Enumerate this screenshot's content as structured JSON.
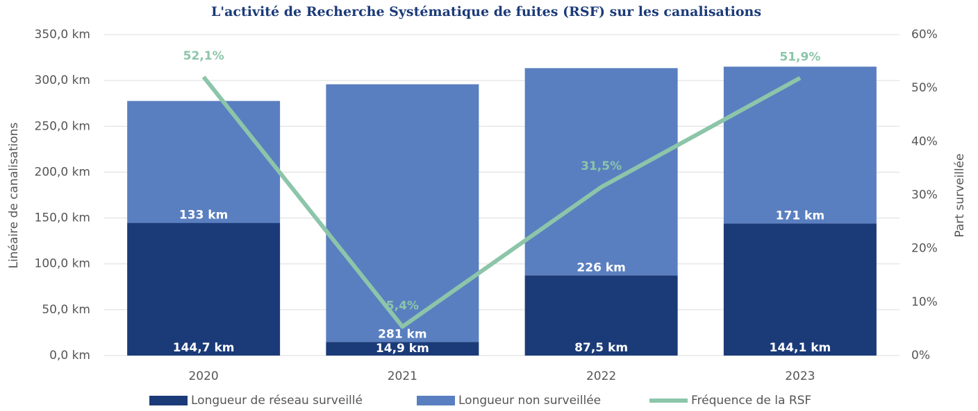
{
  "chart_data": {
    "type": "bar",
    "title": "L'activité de Recherche Systématique de fuites (RSF) sur les canalisations",
    "categories": [
      "2020",
      "2021",
      "2022",
      "2023"
    ],
    "stacked": true,
    "series": [
      {
        "name": "Longueur de réseau surveillé",
        "type": "bar",
        "color": "#1b3a78",
        "values": [
          144.7,
          14.9,
          87.5,
          144.1
        ],
        "value_labels": [
          "144,7 km",
          "14,9 km",
          "87,5 km",
          "144,1 km"
        ]
      },
      {
        "name": "Longueur non surveillée",
        "type": "bar",
        "color": "#5a7fc0",
        "values": [
          133,
          281,
          226,
          171
        ],
        "value_labels": [
          "133 km",
          "281 km",
          "226 km",
          "171 km"
        ]
      },
      {
        "name": "Fréquence de la RSF",
        "type": "line",
        "axis": "y2",
        "color": "#8cc5a9",
        "values": [
          52.1,
          5.4,
          31.5,
          51.9
        ],
        "value_labels": [
          "52,1%",
          "5,4%",
          "31,5%",
          "51,9%"
        ]
      }
    ],
    "ylabel": "Linéaire de canalisations",
    "y2label": "Part surveillée",
    "ylim": [
      0,
      350
    ],
    "yticks": [
      {
        "value": 0,
        "label": "0,0 km"
      },
      {
        "value": 50,
        "label": "50,0 km"
      },
      {
        "value": 100,
        "label": "100,0 km"
      },
      {
        "value": 150,
        "label": "150,0 km"
      },
      {
        "value": 200,
        "label": "200,0 km"
      },
      {
        "value": 250,
        "label": "250,0 km"
      },
      {
        "value": 300,
        "label": "300,0 km"
      },
      {
        "value": 350,
        "label": "350,0 km"
      }
    ],
    "y2lim": [
      0,
      60
    ],
    "y2ticks": [
      {
        "value": 0,
        "label": "0%"
      },
      {
        "value": 10,
        "label": "10%"
      },
      {
        "value": 20,
        "label": "20%"
      },
      {
        "value": 30,
        "label": "30%"
      },
      {
        "value": 40,
        "label": "40%"
      },
      {
        "value": 50,
        "label": "50%"
      },
      {
        "value": 60,
        "label": "60%"
      }
    ],
    "grid": true,
    "legend": "bottom"
  }
}
